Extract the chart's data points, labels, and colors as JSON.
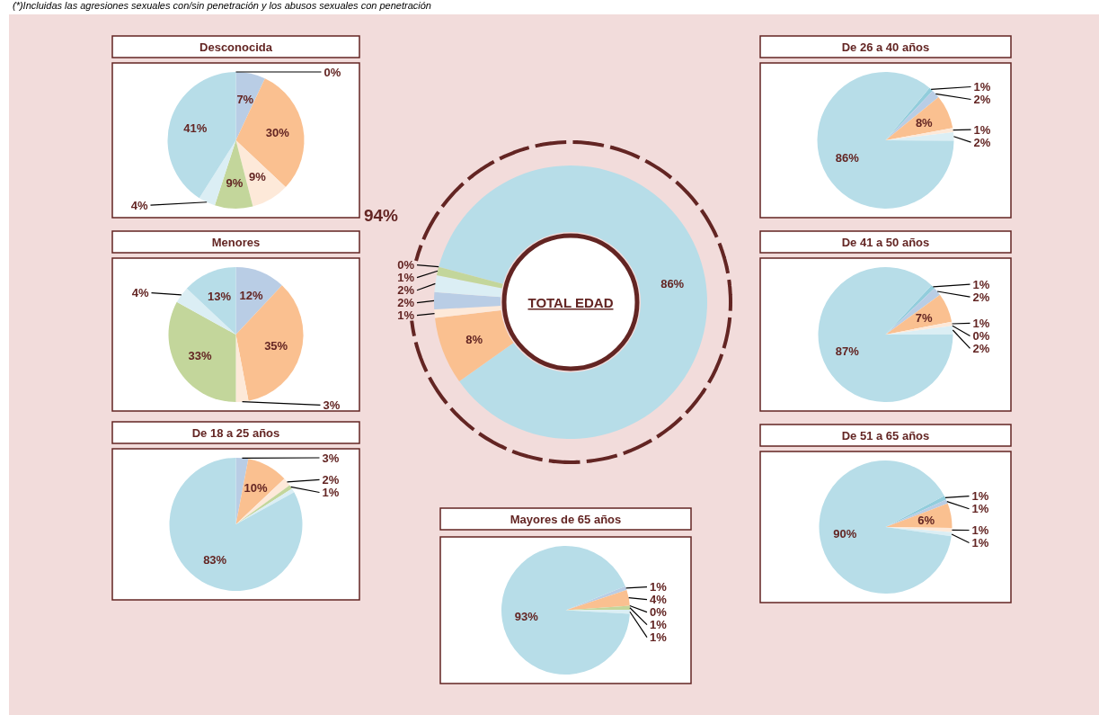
{
  "chart_data": [
    {
      "type": "pie",
      "title": "Desconocida",
      "categories": [
        null,
        null,
        null,
        null,
        null,
        null,
        null
      ],
      "values": [
        0,
        7,
        30,
        9,
        9,
        4,
        41
      ],
      "colors": [
        "#92cddc",
        "#b9cde5",
        "#fac090",
        "#fde9d9",
        "#c3d69b",
        "#dbeef4",
        "#b7dde8"
      ],
      "value_labels": [
        "0%",
        "7%",
        "30%",
        "9%",
        "9%",
        "4%",
        "41%"
      ],
      "annotations": [
        "(*)Incluidas las agresiones sexuales con/sin penetración y los abusos sexuales con penetración"
      ]
    },
    {
      "type": "pie",
      "title": "Menores",
      "categories": [
        null,
        null,
        null,
        null,
        null,
        null,
        null
      ],
      "values": [
        0,
        12,
        35,
        3,
        33,
        4,
        13
      ],
      "colors": [
        "#92cddc",
        "#b9cde5",
        "#fac090",
        "#fde9d9",
        "#c3d69b",
        "#dbeef4",
        "#b7dde8"
      ],
      "value_labels": [
        null,
        "12%",
        "35%",
        "3%",
        "33%",
        "4%",
        "13%"
      ]
    },
    {
      "type": "pie",
      "title": "De 18 a 25 años",
      "categories": [
        null,
        null,
        null,
        null,
        null,
        null,
        null
      ],
      "values": [
        0,
        3,
        10,
        2,
        1,
        1,
        83
      ],
      "colors": [
        "#92cddc",
        "#b9cde5",
        "#fac090",
        "#fde9d9",
        "#c3d69b",
        "#dbeef4",
        "#b7dde8"
      ],
      "value_labels": [
        null,
        "3%",
        "10%",
        "2%",
        "1%",
        null,
        "83%"
      ]
    },
    {
      "type": "donut",
      "title": "TOTAL EDAD",
      "categories": [
        null,
        null,
        null,
        null,
        null,
        null,
        null
      ],
      "values": [
        86,
        8,
        1,
        2,
        2,
        1,
        0
      ],
      "colors": [
        "#b7dde8",
        "#fac090",
        "#fde9d9",
        "#b9cde5",
        "#dbeef4",
        "#c3d69b",
        "#92cddc"
      ],
      "value_labels": [
        "86%",
        "8%",
        "1%",
        "2%",
        "2%",
        "1%",
        "0%"
      ],
      "annotations": [
        "94%"
      ]
    },
    {
      "type": "pie",
      "title": "Mayores de 65 años",
      "categories": [
        null,
        null,
        null,
        null,
        null,
        null,
        null
      ],
      "values": [
        0,
        1,
        4,
        0,
        1,
        1,
        93
      ],
      "colors": [
        "#92cddc",
        "#b9cde5",
        "#fac090",
        "#fde9d9",
        "#c3d69b",
        "#dbeef4",
        "#b7dde8"
      ],
      "value_labels": [
        null,
        "1%",
        "4%",
        "0%",
        "1%",
        "1%",
        "93%"
      ]
    },
    {
      "type": "pie",
      "title": "De 26 a 40 años",
      "categories": [
        null,
        null,
        null,
        null,
        null,
        null,
        null
      ],
      "values": [
        1,
        2,
        8,
        1,
        0,
        2,
        86
      ],
      "colors": [
        "#92cddc",
        "#b9cde5",
        "#fac090",
        "#fde9d9",
        "#c3d69b",
        "#dbeef4",
        "#b7dde8"
      ],
      "value_labels": [
        "1%",
        "2%",
        "8%",
        "1%",
        null,
        "2%",
        "86%"
      ]
    },
    {
      "type": "pie",
      "title": "De 41 a 50 años",
      "categories": [
        null,
        null,
        null,
        null,
        null,
        null,
        null
      ],
      "values": [
        1,
        2,
        7,
        1,
        0,
        2,
        87
      ],
      "colors": [
        "#92cddc",
        "#b9cde5",
        "#fac090",
        "#fde9d9",
        "#c3d69b",
        "#dbeef4",
        "#b7dde8"
      ],
      "value_labels": [
        "1%",
        "2%",
        "7%",
        "1%",
        "0%",
        "2%",
        "87%"
      ]
    },
    {
      "type": "pie",
      "title": "De 51 a 65 años",
      "categories": [
        null,
        null,
        null,
        null,
        null,
        null,
        null
      ],
      "values": [
        1,
        1,
        6,
        1,
        0,
        1,
        90
      ],
      "colors": [
        "#92cddc",
        "#b9cde5",
        "#fac090",
        "#fde9d9",
        "#c3d69b",
        "#dbeef4",
        "#b7dde8"
      ],
      "value_labels": [
        "1%",
        "1%",
        "6%",
        "1%",
        null,
        "1%",
        "90%"
      ]
    }
  ]
}
